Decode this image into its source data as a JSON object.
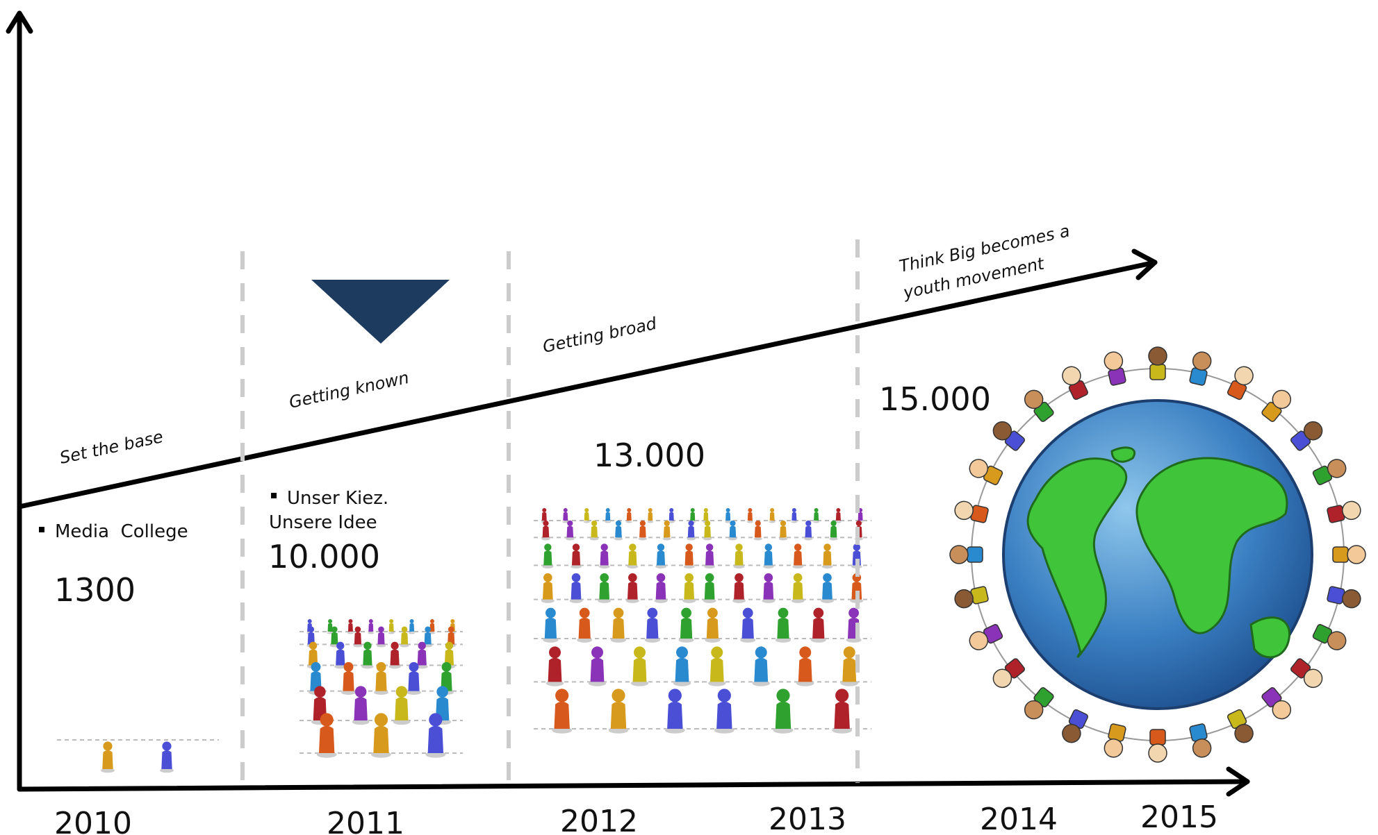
{
  "phases": [
    {
      "label": "Set the base"
    },
    {
      "label": "Getting known"
    },
    {
      "label": "Getting broad"
    },
    {
      "label_lines": [
        "Think Big becomes a",
        "youth movement"
      ]
    }
  ],
  "projects": [
    {
      "bullet": "Media  College",
      "count": "1300"
    },
    {
      "bullet_lines": [
        "Unser Kiez.",
        "Unsere Idee"
      ],
      "count": "10.000"
    },
    {
      "count": "13.000"
    },
    {
      "count": "15.000"
    }
  ],
  "years": [
    "2010",
    "2011",
    "2012",
    "2013",
    "2014",
    "2015"
  ]
}
